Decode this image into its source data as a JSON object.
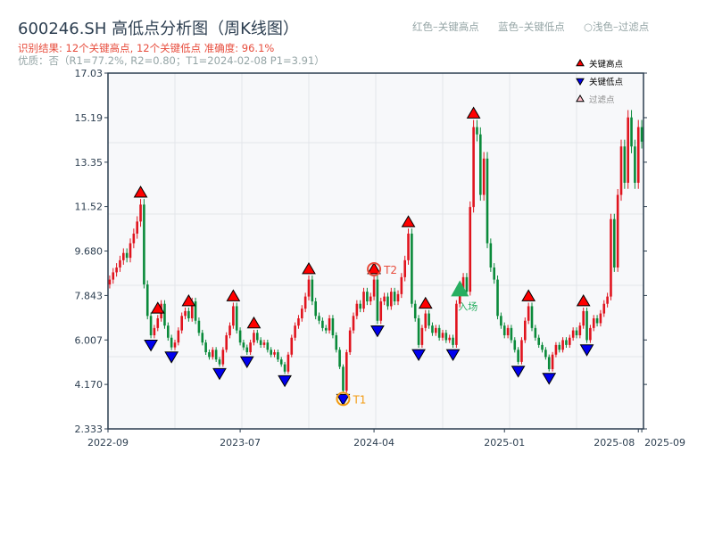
{
  "header": {
    "title": "600246.SH 高低点分析图（周K线图）",
    "result_line": "识别结果: 12个关键高点, 12个关键低点  准确度: 96.1%",
    "quality_line": "优质：否（R1=77.2%, R2=0.80；T1=2024-02-08 P1=3.91）",
    "legend_red": "红色–关键高点",
    "legend_blue": "蓝色–关键低点",
    "legend_light": "○浅色–过滤点"
  },
  "chart_data": {
    "type": "candlestick",
    "frequency": "weekly",
    "ylim": [
      2.333,
      17.03
    ],
    "y_ticks": [
      "2.333",
      "4.170",
      "6.007",
      "7.843",
      "9.680",
      "11.52",
      "13.35",
      "15.19",
      "17.03"
    ],
    "x_ticks": [
      {
        "label": "2022-09",
        "index": 0
      },
      {
        "label": "2023-07",
        "index": 38
      },
      {
        "label": "2024-04",
        "index": 77
      },
      {
        "label": "2025-01",
        "index": 115
      },
      {
        "label": "2025-08",
        "index": 154
      },
      {
        "label": "2025-09",
        "index": 155
      }
    ],
    "first_open": 8.3,
    "closes": [
      8.5,
      8.8,
      9.0,
      9.3,
      9.6,
      9.4,
      10.0,
      10.4,
      10.9,
      11.6,
      8.3,
      7.0,
      6.2,
      6.5,
      6.9,
      7.5,
      6.6,
      6.1,
      5.7,
      5.9,
      6.4,
      7.0,
      7.2,
      6.9,
      7.6,
      6.8,
      6.3,
      5.9,
      5.5,
      5.3,
      5.6,
      5.2,
      5.0,
      5.6,
      6.2,
      6.6,
      7.4,
      6.4,
      5.9,
      5.7,
      5.5,
      5.9,
      6.3,
      6.0,
      5.8,
      5.9,
      5.6,
      5.4,
      5.5,
      5.2,
      5.0,
      4.7,
      5.4,
      6.1,
      6.6,
      6.9,
      7.3,
      7.8,
      8.5,
      7.6,
      7.0,
      6.8,
      6.5,
      6.4,
      6.9,
      6.2,
      5.6,
      4.9,
      3.91,
      5.5,
      6.4,
      7.0,
      7.5,
      7.3,
      8.0,
      7.6,
      7.8,
      8.5,
      6.8,
      7.6,
      7.8,
      7.4,
      8.0,
      7.6,
      7.9,
      8.6,
      9.3,
      10.4,
      7.5,
      6.9,
      5.8,
      6.5,
      7.1,
      6.6,
      6.3,
      6.5,
      6.1,
      6.3,
      6.0,
      6.1,
      5.8,
      7.5,
      8.1,
      8.6,
      8.0,
      11.5,
      14.8,
      14.5,
      12.0,
      13.5,
      10.0,
      9.0,
      8.5,
      7.0,
      6.6,
      6.2,
      6.5,
      6.0,
      5.6,
      5.1,
      6.0,
      6.8,
      7.4,
      6.5,
      6.1,
      5.8,
      5.6,
      5.3,
      4.8,
      5.4,
      5.8,
      5.6,
      6.0,
      5.8,
      6.1,
      6.4,
      6.2,
      6.6,
      7.2,
      6.0,
      6.5,
      6.9,
      6.7,
      7.1,
      7.5,
      7.8,
      11.0,
      9.0,
      12.0,
      14.0,
      12.5,
      15.2,
      14.0,
      12.5,
      14.8,
      14.2
    ],
    "key_highs": [
      9,
      14,
      23,
      36,
      42,
      58,
      77,
      87,
      92,
      106,
      122,
      138
    ],
    "key_lows": [
      12,
      18,
      32,
      40,
      51,
      68,
      78,
      90,
      100,
      119,
      128,
      139
    ],
    "T1": {
      "index": 68,
      "label": "T1",
      "date": "2024-02-08",
      "price": 3.91
    },
    "T2": {
      "index": 77,
      "label": "T2"
    },
    "entry": {
      "index": 102,
      "label": "入场"
    },
    "legend": {
      "position": "top-right",
      "items": [
        "关键高点",
        "关键低点",
        "过滤点"
      ]
    },
    "colors": {
      "up": "#e0141e",
      "down": "#0a8a3a",
      "high_marker": "#ff0000",
      "low_marker": "#0000ee",
      "T1": "#f39c12",
      "T2": "#e74c3c",
      "entry": "#27ae60",
      "plot_bg": "#f7f8fa"
    },
    "grid": true
  }
}
